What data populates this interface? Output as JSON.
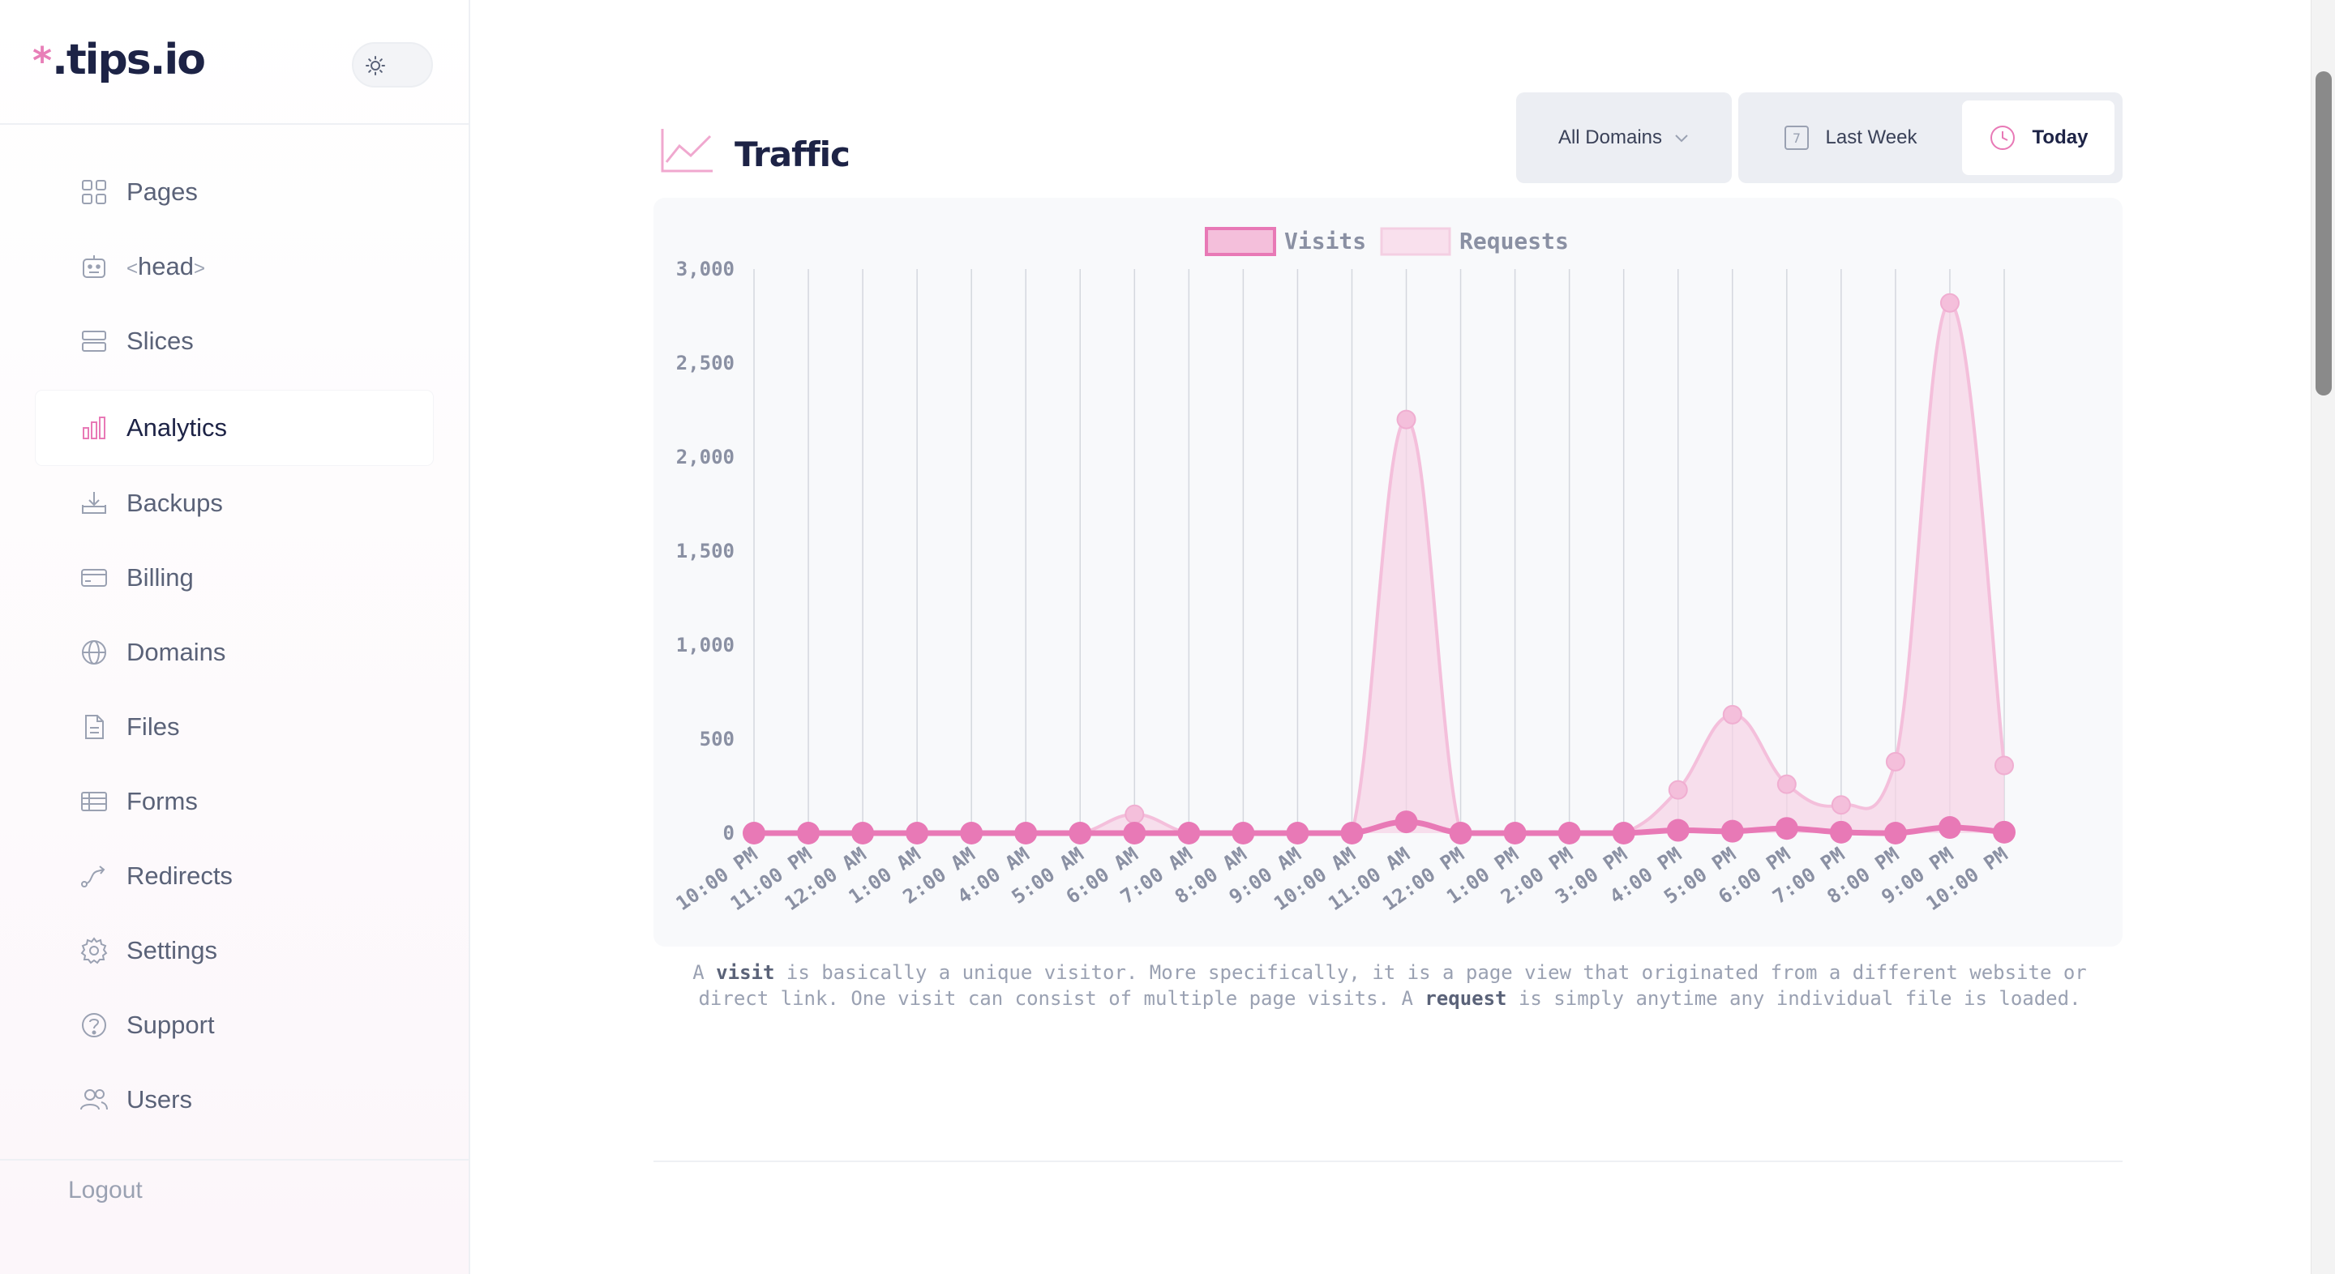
{
  "brand": {
    "logo_star": "*",
    "logo_text": ".tips.io"
  },
  "theme_toggle": {
    "icon": "sun-icon"
  },
  "sidebar": {
    "items": [
      {
        "id": "pages",
        "label": "Pages",
        "icon": "grid-icon"
      },
      {
        "id": "head",
        "label": "head",
        "icon": "robot-icon",
        "prefix": "<",
        "suffix": ">"
      },
      {
        "id": "slices",
        "label": "Slices",
        "icon": "layers-icon"
      },
      {
        "id": "analytics",
        "label": "Analytics",
        "icon": "bar-chart-icon",
        "active": true
      },
      {
        "id": "backups",
        "label": "Backups",
        "icon": "download-tray-icon"
      },
      {
        "id": "billing",
        "label": "Billing",
        "icon": "credit-card-icon"
      },
      {
        "id": "domains",
        "label": "Domains",
        "icon": "globe-icon"
      },
      {
        "id": "files",
        "label": "Files",
        "icon": "document-icon"
      },
      {
        "id": "forms",
        "label": "Forms",
        "icon": "table-icon"
      },
      {
        "id": "redirects",
        "label": "Redirects",
        "icon": "route-icon"
      },
      {
        "id": "settings",
        "label": "Settings",
        "icon": "gear-icon"
      },
      {
        "id": "support",
        "label": "Support",
        "icon": "question-icon"
      },
      {
        "id": "users",
        "label": "Users",
        "icon": "users-icon"
      }
    ],
    "logout_label": "Logout"
  },
  "main": {
    "title": "Traffic",
    "domain_select": "All Domains",
    "ranges": {
      "week_label": "Last Week",
      "week_icon_text": "7",
      "today_label": "Today",
      "selected": "Today"
    },
    "note": {
      "p1": "A ",
      "b1": "visit",
      "p2": " is basically a unique visitor. More specifically, it is a page view that originated from a different website or direct link. One visit can consist of multiple page visits. A ",
      "b2": "request",
      "p3": " is simply anytime any individual file is loaded."
    }
  },
  "colors": {
    "accent": "#e879b6",
    "requests_fill": "#f7d3e6",
    "requests_line": "#f4bfdb",
    "axis_text": "#8a90a3"
  },
  "chart_data": {
    "type": "line",
    "categories": [
      "10:00 PM",
      "11:00 PM",
      "12:00 AM",
      "1:00 AM",
      "2:00 AM",
      "4:00 AM",
      "5:00 AM",
      "6:00 AM",
      "7:00 AM",
      "8:00 AM",
      "9:00 AM",
      "10:00 AM",
      "11:00 AM",
      "12:00 PM",
      "1:00 PM",
      "2:00 PM",
      "3:00 PM",
      "4:00 PM",
      "5:00 PM",
      "6:00 PM",
      "7:00 PM",
      "8:00 PM",
      "9:00 PM",
      "10:00 PM"
    ],
    "series": [
      {
        "name": "Visits",
        "values": [
          0,
          0,
          0,
          0,
          0,
          0,
          0,
          0,
          0,
          0,
          0,
          0,
          60,
          0,
          0,
          0,
          0,
          15,
          10,
          25,
          5,
          0,
          30,
          5
        ]
      },
      {
        "name": "Requests",
        "values": [
          0,
          0,
          0,
          0,
          0,
          0,
          0,
          100,
          0,
          0,
          0,
          0,
          2200,
          0,
          0,
          0,
          0,
          230,
          630,
          260,
          150,
          380,
          2820,
          360
        ]
      }
    ],
    "ylim": [
      0,
      3000
    ],
    "yticks": [
      "0",
      "500",
      "1,000",
      "1,500",
      "2,000",
      "2,500",
      "3,000"
    ],
    "ytick_values": [
      0,
      500,
      1000,
      1500,
      2000,
      2500,
      3000
    ],
    "legend_position": "top",
    "grid": "vertical"
  }
}
